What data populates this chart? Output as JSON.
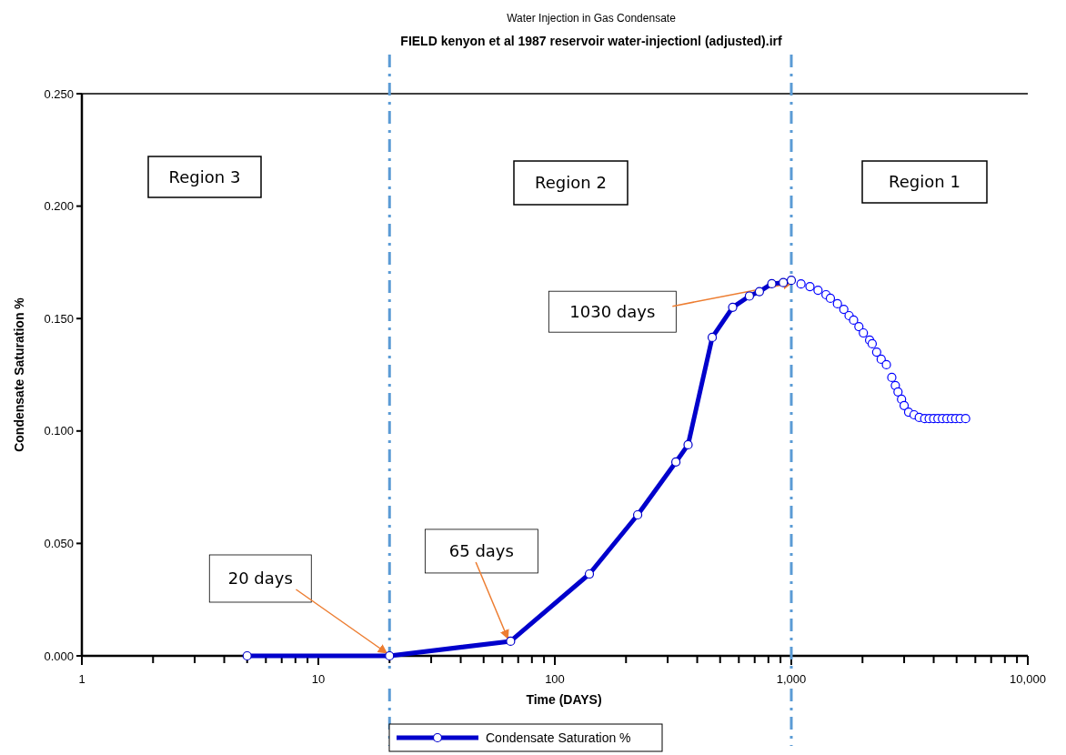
{
  "chart_data": {
    "type": "line",
    "title": "Water Injection in Gas Condensate",
    "subtitle": "FIELD kenyon et al 1987 reservoir water-injectionl (adjusted).irf",
    "xlabel": "Time (DAYS)",
    "ylabel": "Condensate Saturation %",
    "log": "x",
    "legend": "bottom",
    "marker": "circle",
    "xlim": [
      1,
      10000
    ],
    "ylim": [
      0,
      0.25
    ],
    "xticks": [
      1,
      {
        "value": 2,
        "label": null
      },
      {
        "value": 3,
        "label": null
      },
      {
        "value": 4,
        "label": null
      },
      {
        "value": 5,
        "label": null
      },
      {
        "value": 6,
        "label": null
      },
      {
        "value": 7,
        "label": null
      },
      {
        "value": 8,
        "label": null
      },
      {
        "value": 9,
        "label": null
      },
      10,
      {
        "value": 20,
        "label": null
      },
      {
        "value": 30,
        "label": null
      },
      {
        "value": 40,
        "label": null
      },
      {
        "value": 50,
        "label": null
      },
      {
        "value": 60,
        "label": null
      },
      {
        "value": 70,
        "label": null
      },
      {
        "value": 80,
        "label": null
      },
      {
        "value": 90,
        "label": null
      },
      100,
      {
        "value": 200,
        "label": null
      },
      {
        "value": 300,
        "label": null
      },
      {
        "value": 400,
        "label": null
      },
      {
        "value": 500,
        "label": null
      },
      {
        "value": 600,
        "label": null
      },
      {
        "value": 700,
        "label": null
      },
      {
        "value": 800,
        "label": null
      },
      {
        "value": 900,
        "label": null
      },
      {
        "value": 1000,
        "label": "1,000"
      },
      {
        "value": 2000,
        "label": null
      },
      {
        "value": 3000,
        "label": null
      },
      {
        "value": 4000,
        "label": null
      },
      {
        "value": 5000,
        "label": null
      },
      {
        "value": 6000,
        "label": null
      },
      {
        "value": 7000,
        "label": null
      },
      {
        "value": 8000,
        "label": null
      },
      {
        "value": 9000,
        "label": null
      },
      {
        "value": 10000,
        "label": "10,000"
      }
    ],
    "yticks": [
      {
        "value": 0,
        "label": "0.000"
      },
      {
        "value": 0.05,
        "label": "0.050"
      },
      {
        "value": 0.1,
        "label": "0.100"
      },
      {
        "value": 0.15,
        "label": "0.150"
      },
      {
        "value": 0.2,
        "label": "0.200"
      },
      {
        "value": 0.25,
        "label": "0.250"
      }
    ],
    "series": [
      {
        "name": "Condensate Saturation %",
        "color": "#0000cc",
        "x": [
          5,
          20,
          65,
          140,
          224,
          325,
          366,
          463,
          565,
          665,
          733,
          827,
          925,
          1000
        ],
        "values": [
          0,
          0,
          0.0065,
          0.0364,
          0.0627,
          0.0862,
          0.0939,
          0.1416,
          0.155,
          0.16,
          0.162,
          0.1655,
          0.166,
          0.167
        ]
      },
      {
        "type": "scatter",
        "color": "#0000ff",
        "x": [
          1099,
          1199,
          1297,
          1402,
          1463,
          1567,
          1667,
          1755,
          1834,
          1931,
          2017,
          2143,
          2198,
          2296,
          2399,
          2524,
          2660,
          2754,
          2826,
          2925,
          3000,
          3133,
          3304,
          3475,
          3664,
          3828,
          3998,
          4169,
          4355,
          4550,
          4753,
          4955,
          5176,
          5458
        ],
        "values": [
          0.1654,
          0.1642,
          0.1626,
          0.1606,
          0.159,
          0.1566,
          0.1541,
          0.1513,
          0.1493,
          0.1464,
          0.1436,
          0.1404,
          0.1388,
          0.1351,
          0.1319,
          0.1295,
          0.1238,
          0.1202,
          0.1174,
          0.1141,
          0.1113,
          0.1084,
          0.1072,
          0.106,
          0.1055,
          0.1055,
          0.1055,
          0.1055,
          0.1055,
          0.1055,
          0.1055,
          0.1055,
          0.1055,
          0.1055
        ]
      }
    ],
    "ref_lines": [
      {
        "axis": "x",
        "value": 20,
        "color": "#5b9bd5",
        "line_style": "dashed"
      },
      {
        "axis": "x",
        "value": 1000,
        "color": "#5b9bd5",
        "line_style": "dashed"
      }
    ],
    "annotations": [
      "Region 3",
      "Region 2",
      "Region 1",
      {
        "text": "20 days",
        "x": 20,
        "y": 0
      },
      {
        "text": "65 days",
        "x": 65,
        "y": 0.0065
      },
      {
        "text": "1030 days",
        "x": 1030,
        "y": 0.167
      }
    ]
  }
}
